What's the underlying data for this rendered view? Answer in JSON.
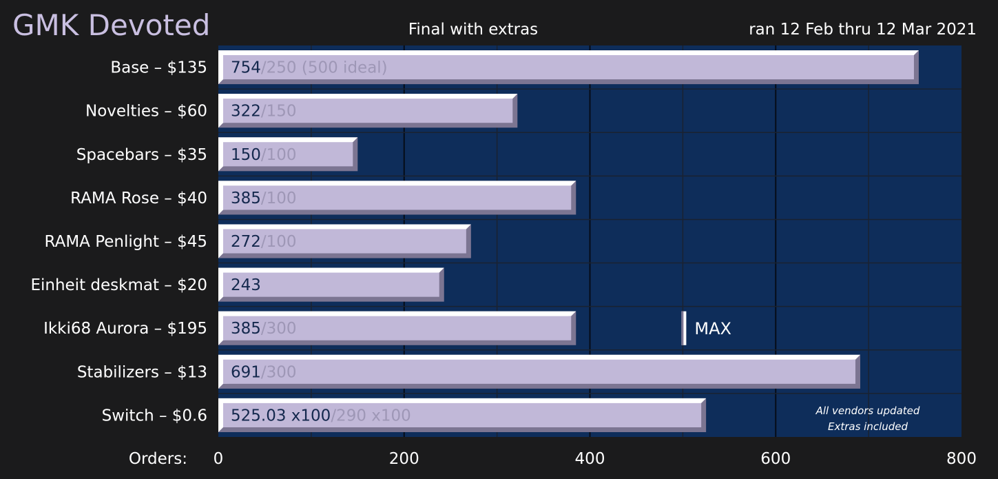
{
  "header": {
    "title": "GMK Devoted",
    "subtitle": "Final with extras",
    "date_range": "ran 12 Feb thru 12 Mar 2021"
  },
  "colors": {
    "background": "#1b1b1c",
    "plot_background": "#0e2d5a",
    "bar_fill": "#c1b8d8",
    "bar_highlight": "#ffffff",
    "bar_shadow": "#7c7592",
    "value_text": "#14284d",
    "goal_text": "#9e97b6"
  },
  "chart_data": {
    "type": "bar",
    "orientation": "horizontal",
    "title": "GMK Devoted",
    "subtitle": "Final with extras",
    "xlabel": "Orders:",
    "xlim": [
      0,
      800
    ],
    "xticks": [
      0,
      200,
      400,
      600,
      800
    ],
    "grid": true,
    "categories": [
      "Base – $135",
      "Novelties – $60",
      "Spacebars – $35",
      "RAMA Rose – $40",
      "RAMA Penlight – $45",
      "Einheit deskmat – $20",
      "Ikki68 Aurora – $195",
      "Stabilizers – $13",
      "Switch – $0.6"
    ],
    "values": [
      754,
      322,
      150,
      385,
      272,
      243,
      385,
      691,
      525.03
    ],
    "value_labels": [
      "754",
      "322",
      "150",
      "385",
      "272",
      "243",
      "385",
      "691",
      "525.03 x100"
    ],
    "goal_labels": [
      "/250  (500 ideal)",
      "/150",
      "/100",
      "/100",
      "/100",
      "",
      "/300",
      "/300",
      "/290 x100"
    ],
    "max_marker": {
      "category": "Ikki68 Aurora – $195",
      "value": 500,
      "label": "MAX"
    },
    "annotation": [
      "All vendors updated",
      "Extras included"
    ]
  }
}
